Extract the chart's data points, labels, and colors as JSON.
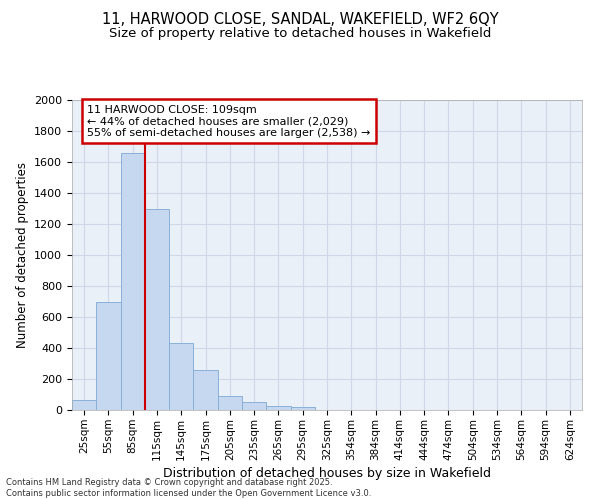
{
  "title_line1": "11, HARWOOD CLOSE, SANDAL, WAKEFIELD, WF2 6QY",
  "title_line2": "Size of property relative to detached houses in Wakefield",
  "xlabel": "Distribution of detached houses by size in Wakefield",
  "ylabel": "Number of detached properties",
  "categories": [
    "25sqm",
    "55sqm",
    "85sqm",
    "115sqm",
    "145sqm",
    "175sqm",
    "205sqm",
    "235sqm",
    "265sqm",
    "295sqm",
    "325sqm",
    "354sqm",
    "384sqm",
    "414sqm",
    "444sqm",
    "474sqm",
    "504sqm",
    "534sqm",
    "564sqm",
    "594sqm",
    "624sqm"
  ],
  "values": [
    65,
    700,
    1660,
    1300,
    435,
    255,
    90,
    50,
    25,
    18,
    0,
    0,
    0,
    0,
    0,
    0,
    0,
    0,
    0,
    0,
    0
  ],
  "bar_color": "#c5d8f0",
  "bar_edge_color": "#8ab0d8",
  "property_line_x": 3.0,
  "annotation_title": "11 HARWOOD CLOSE: 109sqm",
  "annotation_line1": "← 44% of detached houses are smaller (2,029)",
  "annotation_line2": "55% of semi-detached houses are larger (2,538) →",
  "annotation_box_facecolor": "#ffffff",
  "annotation_box_edgecolor": "#cc0000",
  "property_line_color": "#cc0000",
  "grid_color": "#d0d8e8",
  "bg_color": "#eaf0f8",
  "footer_line1": "Contains HM Land Registry data © Crown copyright and database right 2025.",
  "footer_line2": "Contains public sector information licensed under the Open Government Licence v3.0.",
  "ylim": [
    0,
    2000
  ],
  "yticks": [
    0,
    200,
    400,
    600,
    800,
    1000,
    1200,
    1400,
    1600,
    1800,
    2000
  ]
}
